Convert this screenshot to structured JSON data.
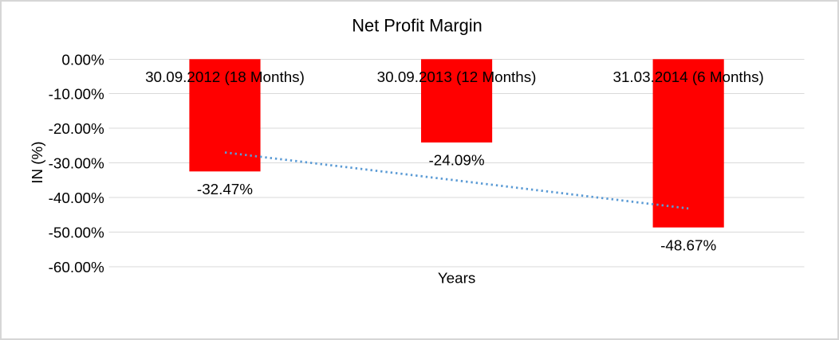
{
  "frame": {
    "background": "#FFFFFF",
    "border_color": "#D6D6D6"
  },
  "chart_data": {
    "type": "bar",
    "title": "Net Profit Margin",
    "xlabel": "Years",
    "ylabel": "IN (%)",
    "categories": [
      "30.09.2012 (18 Months)",
      "30.09.2013 (12 Months)",
      "31.03.2014 (6 Months)"
    ],
    "series": [
      {
        "name": "Net Profit Margin",
        "values": [
          -32.47,
          -24.09,
          -48.67
        ]
      }
    ],
    "data_labels": [
      "-32.47%",
      "-24.09%",
      "-48.67%"
    ],
    "y_ticks": {
      "values": [
        0,
        -10,
        -20,
        -30,
        -40,
        -50,
        -60
      ],
      "labels": [
        "0.00%",
        "-10.00%",
        "-20.00%",
        "-30.00%",
        "-40.00%",
        "-50.00%",
        "-60.00%"
      ]
    },
    "ylim": [
      -60,
      0
    ],
    "grid": true,
    "legend": "none",
    "bar_orientation": "vertical",
    "colors": {
      "bar": "#FF0000",
      "trendline": "#5B9BD5",
      "gridline": "#D9D9D9",
      "text": "#000000"
    },
    "trendline": {
      "type": "linear",
      "style": "dotted",
      "value_start": -26.98,
      "value_end": -43.18
    }
  }
}
